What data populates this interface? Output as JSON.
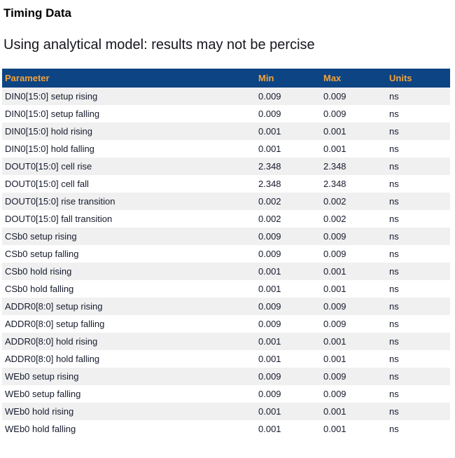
{
  "page": {
    "title": "Timing Data",
    "subtitle": "Using analytical model: results may not be percise"
  },
  "colors": {
    "header_bg": "#0D4484",
    "header_text": "#F2A33A",
    "row_alt": "#F0F0F1",
    "body_text": "#161B2C"
  },
  "table": {
    "columns": [
      "Parameter",
      "Min",
      "Max",
      "Units"
    ],
    "rows": [
      {
        "parameter": "DIN0[15:0] setup rising",
        "min": "0.009",
        "max": "0.009",
        "units": "ns"
      },
      {
        "parameter": "DIN0[15:0] setup falling",
        "min": "0.009",
        "max": "0.009",
        "units": "ns"
      },
      {
        "parameter": "DIN0[15:0] hold rising",
        "min": "0.001",
        "max": "0.001",
        "units": "ns"
      },
      {
        "parameter": "DIN0[15:0] hold falling",
        "min": "0.001",
        "max": "0.001",
        "units": "ns"
      },
      {
        "parameter": "DOUT0[15:0] cell rise",
        "min": "2.348",
        "max": "2.348",
        "units": "ns"
      },
      {
        "parameter": "DOUT0[15:0] cell fall",
        "min": "2.348",
        "max": "2.348",
        "units": "ns"
      },
      {
        "parameter": "DOUT0[15:0] rise transition",
        "min": "0.002",
        "max": "0.002",
        "units": "ns"
      },
      {
        "parameter": "DOUT0[15:0] fall transition",
        "min": "0.002",
        "max": "0.002",
        "units": "ns"
      },
      {
        "parameter": "CSb0 setup rising",
        "min": "0.009",
        "max": "0.009",
        "units": "ns"
      },
      {
        "parameter": "CSb0 setup falling",
        "min": "0.009",
        "max": "0.009",
        "units": "ns"
      },
      {
        "parameter": "CSb0 hold rising",
        "min": "0.001",
        "max": "0.001",
        "units": "ns"
      },
      {
        "parameter": "CSb0 hold falling",
        "min": "0.001",
        "max": "0.001",
        "units": "ns"
      },
      {
        "parameter": "ADDR0[8:0] setup rising",
        "min": "0.009",
        "max": "0.009",
        "units": "ns"
      },
      {
        "parameter": "ADDR0[8:0] setup falling",
        "min": "0.009",
        "max": "0.009",
        "units": "ns"
      },
      {
        "parameter": "ADDR0[8:0] hold rising",
        "min": "0.001",
        "max": "0.001",
        "units": "ns"
      },
      {
        "parameter": "ADDR0[8:0] hold falling",
        "min": "0.001",
        "max": "0.001",
        "units": "ns"
      },
      {
        "parameter": "WEb0 setup rising",
        "min": "0.009",
        "max": "0.009",
        "units": "ns"
      },
      {
        "parameter": "WEb0 setup falling",
        "min": "0.009",
        "max": "0.009",
        "units": "ns"
      },
      {
        "parameter": "WEb0 hold rising",
        "min": "0.001",
        "max": "0.001",
        "units": "ns"
      },
      {
        "parameter": "WEb0 hold falling",
        "min": "0.001",
        "max": "0.001",
        "units": "ns"
      }
    ]
  }
}
